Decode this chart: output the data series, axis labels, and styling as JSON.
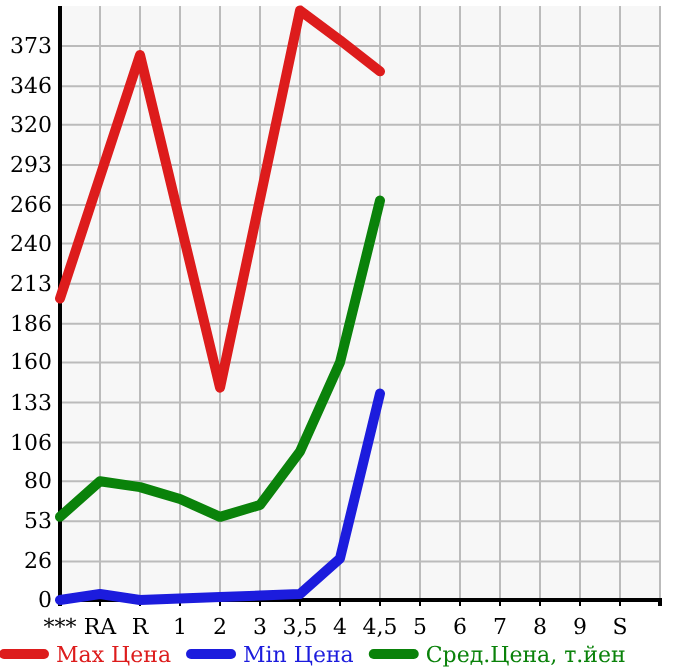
{
  "chart_data": {
    "type": "line",
    "categories": [
      "***",
      "RA",
      "R",
      "1",
      "2",
      "3",
      "3,5",
      "4",
      "4,5",
      "5",
      "6",
      "7",
      "8",
      "9",
      "S",
      null
    ],
    "ylim": [
      0,
      400
    ],
    "yticks": [
      0,
      26,
      53,
      80,
      106,
      133,
      160,
      186,
      213,
      240,
      266,
      293,
      320,
      346,
      373
    ],
    "grid": true,
    "legend": "bottom",
    "marker": "none",
    "line_style": "solid",
    "series": [
      {
        "name": "Max Цена",
        "color": "#dd1c1c",
        "values": [
          203,
          285,
          367,
          255,
          143,
          270,
          397,
          377,
          356,
          null,
          null,
          null,
          null,
          null,
          null,
          null
        ]
      },
      {
        "name": "Min Цена",
        "color": "#1c1cdd",
        "values": [
          0,
          4,
          0,
          1,
          2,
          3,
          4,
          28,
          139,
          null,
          null,
          null,
          null,
          null,
          null,
          null
        ]
      },
      {
        "name": "Сред.Цена, т.йен",
        "color": "#0a820a",
        "values": [
          56,
          80,
          76,
          68,
          56,
          64,
          100,
          160,
          269,
          null,
          null,
          null,
          null,
          null,
          null,
          null
        ]
      }
    ]
  }
}
